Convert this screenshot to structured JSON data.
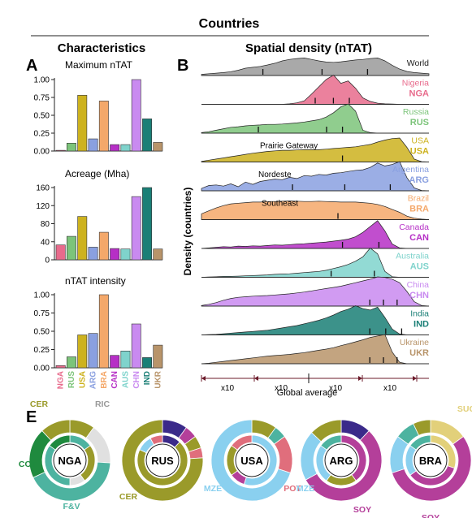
{
  "figure": {
    "title": "Countries",
    "section_left": "Characteristics",
    "section_right": "Spatial density (nTAT)",
    "panel_labels": [
      "A",
      "B",
      "E"
    ]
  },
  "colors": {
    "NGA": "#e86b8c",
    "RUS": "#7cc47a",
    "USA": "#cdb21e",
    "ARG": "#8aa0e0",
    "BRA": "#f4a86a",
    "CAN": "#b62fc6",
    "AUS": "#7fd3cc",
    "CHN": "#c98af0",
    "IND": "#1a7f76",
    "UKR": "#b8946a",
    "World": "#9a9a9a"
  },
  "chart_data": [
    {
      "type": "bar",
      "title": "Maximum nTAT",
      "ylim": [
        0,
        1.0
      ],
      "yticks": [
        "0.00",
        "0.25",
        "0.50",
        "0.75",
        "1.00"
      ],
      "categories": [
        "NGA",
        "RUS",
        "USA",
        "ARG",
        "BRA",
        "CAN",
        "AUS",
        "CHN",
        "IND",
        "UKR"
      ],
      "values": [
        0.01,
        0.11,
        0.78,
        0.17,
        0.7,
        0.09,
        0.09,
        1.0,
        0.45,
        0.12
      ]
    },
    {
      "type": "bar",
      "title": "Acreage (Mha)",
      "ylim": [
        0,
        160
      ],
      "yticks": [
        "0",
        "40",
        "80",
        "120",
        "160"
      ],
      "categories": [
        "NGA",
        "RUS",
        "USA",
        "ARG",
        "BRA",
        "CAN",
        "AUS",
        "CHN",
        "IND",
        "UKR"
      ],
      "values": [
        33,
        52,
        96,
        28,
        61,
        25,
        24,
        140,
        160,
        24
      ]
    },
    {
      "type": "bar",
      "title": "nTAT intensity",
      "ylim": [
        0,
        1.0
      ],
      "yticks": [
        "0.00",
        "0.25",
        "0.50",
        "0.75",
        "1.00"
      ],
      "categories": [
        "NGA",
        "RUS",
        "USA",
        "ARG",
        "BRA",
        "CAN",
        "AUS",
        "CHN",
        "IND",
        "UKR"
      ],
      "values": [
        0.03,
        0.15,
        0.45,
        0.47,
        1.0,
        0.17,
        0.23,
        0.6,
        0.14,
        0.31
      ]
    },
    {
      "type": "area",
      "title": "Spatial density (nTAT)",
      "ylabel": "Density (countries)",
      "xlabel": "Global average",
      "x_scale_labels": [
        "x10",
        "x10",
        "x10",
        "x10"
      ],
      "series": [
        {
          "name": "World",
          "code": "",
          "values": [
            0.04,
            0.06,
            0.08,
            0.1,
            0.13,
            0.18,
            0.25,
            0.28,
            0.31,
            0.36,
            0.42,
            0.5,
            0.55,
            0.58,
            0.6,
            0.55,
            0.5,
            0.46,
            0.45,
            0.47,
            0.5,
            0.53,
            0.55,
            0.58,
            0.6,
            0.5,
            0.35,
            0.22,
            0.14,
            0.1,
            0.08,
            0.06
          ],
          "ticks": [
            0.27,
            0.53,
            0.73
          ]
        },
        {
          "name": "Nigeria",
          "code": "NGA",
          "values": [
            0,
            0,
            0,
            0,
            0,
            0,
            0,
            0,
            0,
            0,
            0,
            0,
            0.02,
            0.05,
            0.12,
            0.35,
            0.6,
            0.85,
            1.0,
            0.72,
            0.8,
            0.55,
            0.22,
            0.1,
            0.04,
            0.02,
            0.01,
            0,
            0,
            0,
            0,
            0
          ],
          "ticks": [
            0.5,
            0.58,
            0.65
          ]
        },
        {
          "name": "Russia",
          "code": "RUS",
          "values": [
            0.02,
            0.05,
            0.1,
            0.15,
            0.2,
            0.22,
            0.25,
            0.27,
            0.28,
            0.3,
            0.3,
            0.31,
            0.33,
            0.35,
            0.38,
            0.42,
            0.46,
            0.55,
            0.7,
            0.9,
            1.0,
            0.75,
            0.1,
            0.02,
            0,
            0,
            0,
            0,
            0,
            0,
            0,
            0
          ],
          "ticks": [
            0.25,
            0.55,
            0.62
          ]
        },
        {
          "name": "USA",
          "code": "USA",
          "values": [
            0.02,
            0.06,
            0.1,
            0.14,
            0.18,
            0.22,
            0.26,
            0.3,
            0.33,
            0.36,
            0.38,
            0.4,
            0.4,
            0.41,
            0.42,
            0.42,
            0.42,
            0.44,
            0.46,
            0.48,
            0.5,
            0.52,
            0.56,
            0.6,
            0.68,
            0.75,
            0.8,
            0.82,
            0.5,
            0.1,
            0.01,
            0
          ],
          "ticks": [
            0.62
          ],
          "annotation": "Prairie Gateway"
        },
        {
          "name": "Argentina",
          "code": "ARG",
          "values": [
            0.08,
            0.18,
            0.2,
            0.16,
            0.24,
            0.14,
            0.3,
            0.22,
            0.32,
            0.36,
            0.4,
            0.38,
            0.46,
            0.42,
            0.52,
            0.5,
            0.56,
            0.54,
            0.6,
            0.62,
            0.66,
            0.7,
            0.72,
            0.8,
            0.95,
            0.85,
            0.9,
            1.0,
            0.45,
            0.1,
            0.01,
            0
          ],
          "ticks": [
            0.4,
            0.63,
            0.83
          ],
          "annotation": "Nordeste"
        },
        {
          "name": "Brazil",
          "code": "BRA",
          "values": [
            0.2,
            0.3,
            0.4,
            0.48,
            0.54,
            0.56,
            0.58,
            0.6,
            0.6,
            0.62,
            0.62,
            0.63,
            0.64,
            0.63,
            0.62,
            0.62,
            0.63,
            0.62,
            0.61,
            0.6,
            0.6,
            0.6,
            0.58,
            0.56,
            0.52,
            0.45,
            0.35,
            0.25,
            0.12,
            0.05,
            0.02,
            0
          ],
          "ticks": [
            0.6
          ],
          "annotation": "Southeast"
        },
        {
          "name": "Canada",
          "code": "CAN",
          "values": [
            0,
            0.02,
            0.04,
            0.06,
            0.05,
            0.08,
            0.07,
            0.09,
            0.08,
            0.1,
            0.12,
            0.11,
            0.13,
            0.15,
            0.16,
            0.18,
            0.2,
            0.22,
            0.25,
            0.28,
            0.32,
            0.4,
            0.55,
            0.75,
            0.95,
            0.6,
            0.15,
            0.02,
            0,
            0,
            0,
            0
          ],
          "ticks": [
            0.62,
            0.78
          ]
        },
        {
          "name": "Australia",
          "code": "AUS",
          "values": [
            0,
            0.01,
            0.02,
            0.03,
            0.03,
            0.04,
            0.05,
            0.06,
            0.07,
            0.08,
            0.1,
            0.11,
            0.12,
            0.14,
            0.16,
            0.18,
            0.2,
            0.24,
            0.3,
            0.36,
            0.44,
            0.55,
            0.7,
            1.0,
            0.8,
            0.2,
            0.02,
            0,
            0,
            0,
            0,
            0
          ],
          "ticks": [
            0.57,
            0.76
          ]
        },
        {
          "name": "China",
          "code": "CHN",
          "values": [
            0.02,
            0.06,
            0.12,
            0.2,
            0.26,
            0.3,
            0.32,
            0.34,
            0.35,
            0.36,
            0.38,
            0.4,
            0.42,
            0.45,
            0.48,
            0.52,
            0.56,
            0.6,
            0.64,
            0.68,
            0.74,
            0.8,
            0.86,
            0.92,
            1.0,
            0.98,
            0.92,
            0.8,
            0.5,
            0.15,
            0.02,
            0
          ],
          "ticks": [
            0.74,
            0.8,
            0.86
          ]
        },
        {
          "name": "India",
          "code": "IND",
          "values": [
            0,
            0.01,
            0.02,
            0.04,
            0.06,
            0.08,
            0.1,
            0.12,
            0.14,
            0.16,
            0.2,
            0.24,
            0.28,
            0.32,
            0.38,
            0.44,
            0.5,
            0.58,
            0.68,
            0.8,
            0.88,
            1.0,
            0.9,
            0.85,
            0.95,
            0.6,
            0.2,
            0.03,
            0,
            0,
            0,
            0
          ],
          "ticks": [
            0.74,
            0.81,
            0.88
          ]
        },
        {
          "name": "Ukraine",
          "code": "UKR",
          "values": [
            0,
            0.02,
            0.05,
            0.08,
            0.11,
            0.14,
            0.17,
            0.2,
            0.23,
            0.26,
            0.28,
            0.3,
            0.32,
            0.35,
            0.38,
            0.42,
            0.46,
            0.5,
            0.55,
            0.62,
            0.68,
            0.75,
            0.82,
            0.9,
            0.95,
            1.0,
            0.4,
            0.05,
            0,
            0,
            0,
            0
          ],
          "ticks": [
            0.74,
            0.8,
            0.86
          ]
        }
      ]
    }
  ],
  "panel_e": {
    "donuts": [
      {
        "code": "NGA",
        "labels": [
          "CER",
          "RIC",
          "COT",
          "F&V"
        ]
      },
      {
        "code": "RUS",
        "labels": [
          "CER"
        ]
      },
      {
        "code": "USA",
        "labels": [
          "MZE",
          "POT"
        ]
      },
      {
        "code": "ARG",
        "labels": [
          "MZE",
          "SOY"
        ]
      },
      {
        "code": "BRA",
        "labels": [
          "SUC",
          "SOY"
        ]
      }
    ]
  }
}
